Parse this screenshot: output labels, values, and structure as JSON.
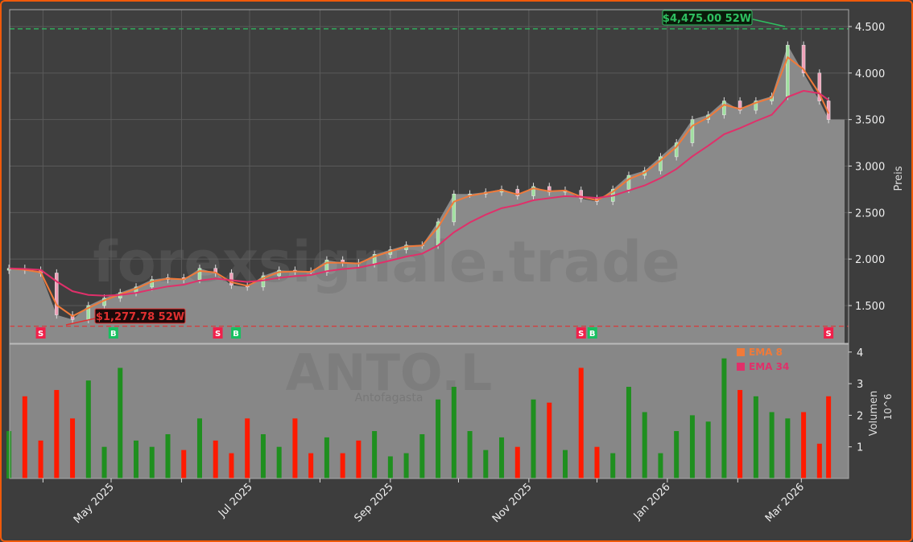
{
  "chart_data": [
    {
      "type": "candlestick",
      "ylabel": "Preis",
      "ylim": [
        1093,
        4682
      ],
      "yticks": [
        "1.500",
        "2.000",
        "2.500",
        "3.000",
        "3.500",
        "4.000",
        "4.500"
      ],
      "ytick_values": [
        1500,
        2000,
        2500,
        3000,
        3500,
        4000,
        4500
      ],
      "xticks": [
        "May 2025",
        "Jul 2025",
        "Sep 2025",
        "Nov 2025",
        "Jan 2026",
        "Mar 2026"
      ],
      "xtick_dates": [
        "2025-05-01",
        "2025-07-01",
        "2025-09-01",
        "2025-11-01",
        "2026-01-01",
        "2026-03-01"
      ],
      "grid": true,
      "dates": [
        "2025-03-17",
        "2025-03-24",
        "2025-03-31",
        "2025-04-07",
        "2025-04-14",
        "2025-04-21",
        "2025-04-28",
        "2025-05-05",
        "2025-05-12",
        "2025-05-19",
        "2025-05-26",
        "2025-06-02",
        "2025-06-09",
        "2025-06-16",
        "2025-06-23",
        "2025-06-30",
        "2025-07-07",
        "2025-07-14",
        "2025-07-21",
        "2025-07-28",
        "2025-08-04",
        "2025-08-11",
        "2025-08-18",
        "2025-08-25",
        "2025-09-01",
        "2025-09-08",
        "2025-09-15",
        "2025-09-22",
        "2025-09-29",
        "2025-10-06",
        "2025-10-13",
        "2025-10-20",
        "2025-10-27",
        "2025-11-03",
        "2025-11-10",
        "2025-11-17",
        "2025-11-24",
        "2025-12-01",
        "2025-12-08",
        "2025-12-15",
        "2025-12-22",
        "2025-12-29",
        "2026-01-05",
        "2026-01-12",
        "2026-01-19",
        "2026-01-26",
        "2026-02-02",
        "2026-02-09",
        "2026-02-16",
        "2026-02-23",
        "2026-03-02",
        "2026-03-09",
        "2026-03-13"
      ],
      "close": [
        1900,
        1880,
        1850,
        1400,
        1350,
        1500,
        1580,
        1640,
        1700,
        1780,
        1800,
        1780,
        1900,
        1850,
        1720,
        1700,
        1820,
        1880,
        1870,
        1860,
        1990,
        1960,
        1950,
        2050,
        2100,
        2150,
        2150,
        2400,
        2700,
        2700,
        2720,
        2750,
        2680,
        2780,
        2720,
        2740,
        2650,
        2620,
        2750,
        2900,
        2950,
        3100,
        3250,
        3500,
        3550,
        3700,
        3600,
        3700,
        3750,
        4300,
        4000,
        3700,
        3500
      ],
      "volume": [
        1.5,
        2.6,
        1.2,
        2.8,
        1.9,
        3.1,
        1.0,
        3.5,
        1.2,
        1.0,
        1.4,
        0.9,
        1.9,
        1.2,
        0.8,
        1.9,
        1.4,
        1.0,
        1.9,
        0.8,
        1.3,
        0.8,
        1.2,
        1.5,
        0.7,
        0.8,
        1.4,
        2.5,
        2.9,
        1.5,
        0.9,
        1.3,
        1.0,
        2.5,
        2.4,
        0.9,
        3.5,
        1.0,
        0.8,
        2.9,
        2.1,
        0.8,
        1.5,
        2.0,
        1.8,
        3.8,
        2.8,
        2.6,
        2.1,
        1.9,
        2.1,
        1.1,
        2.6
      ],
      "volume_ylabel": "Volumen",
      "volume_scale": "10^6",
      "volume_yticks": [
        "1",
        "2",
        "3",
        "4"
      ],
      "series": [
        {
          "name": "EMA 8",
          "color": "#f07a3a"
        },
        {
          "name": "EMA 34",
          "color": "#e0306a"
        }
      ],
      "legend": "volume-panel top-center",
      "high_52w": {
        "label": "$4,475.00 52W",
        "value": 4475,
        "date": "2026-02-23"
      },
      "low_52w": {
        "label": "$1,277.78 52W",
        "value": 1277.78,
        "date": "2025-04-09"
      },
      "signals": [
        {
          "type": "S",
          "date": "2025-03-31"
        },
        {
          "type": "B",
          "date": "2025-05-02"
        },
        {
          "type": "S",
          "date": "2025-06-17"
        },
        {
          "type": "B",
          "date": "2025-06-25"
        },
        {
          "type": "S",
          "date": "2025-11-24"
        },
        {
          "type": "B",
          "date": "2025-11-27"
        },
        {
          "type": "S",
          "date": "2026-03-13"
        }
      ]
    }
  ],
  "watermark": {
    "site": "forexsignale.trade",
    "ticker": "ANTO.L",
    "name": "Antofagasta"
  },
  "colors": {
    "up": "#1f8f1f",
    "down": "#ff1a00",
    "buy": "#17c060",
    "sell": "#f0204a",
    "background": "#3d3d3d",
    "border": "#f05a0a"
  }
}
